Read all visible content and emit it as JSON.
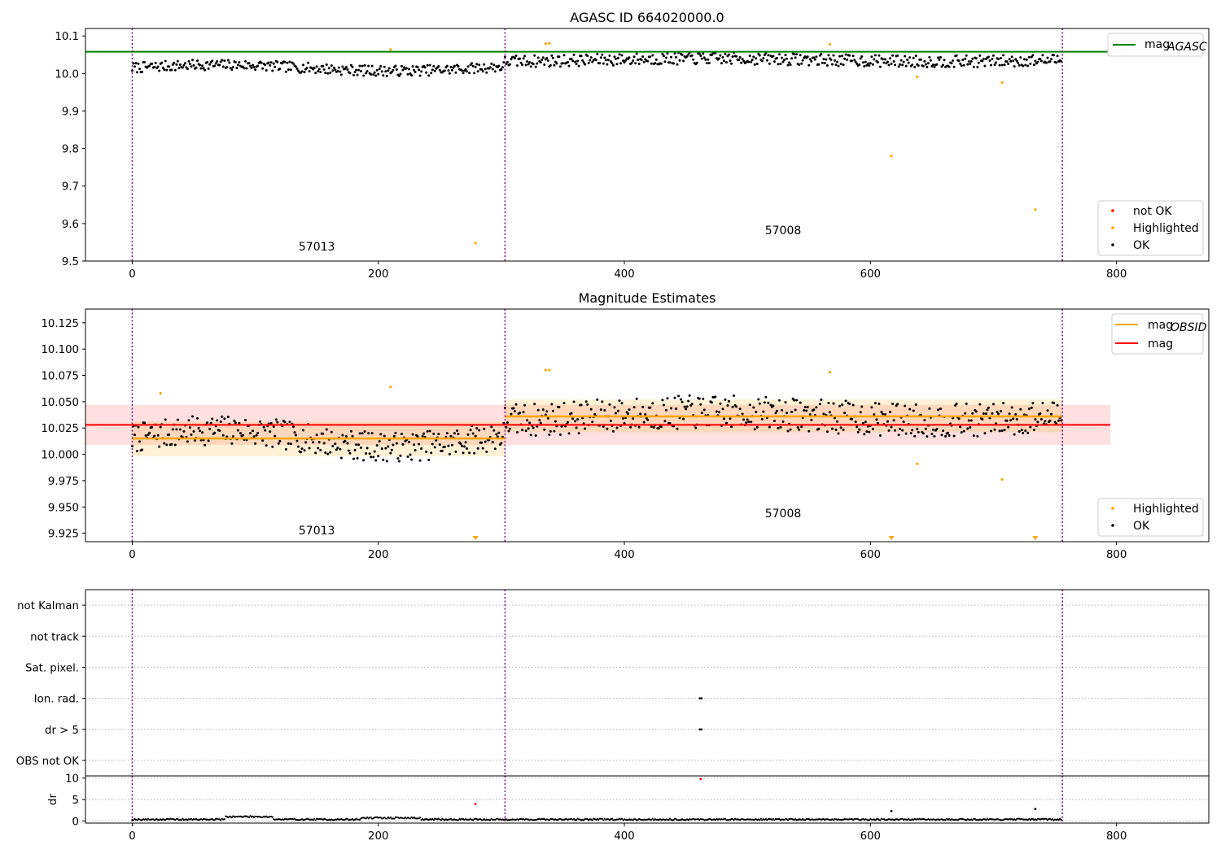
{
  "chart_data": [
    {
      "type": "scatter",
      "id": "agasc_panel",
      "title": "AGASC ID 664020000.0",
      "xlim": [
        -38,
        875
      ],
      "ylim": [
        9.5,
        10.12
      ],
      "xticks": [
        0,
        200,
        400,
        600,
        800
      ],
      "xtick_labels": [
        "0",
        "200",
        "400",
        "600",
        "800"
      ],
      "yticks": [
        9.5,
        9.6,
        9.7,
        9.8,
        9.9,
        10.0,
        10.1
      ],
      "ytick_labels": [
        "9.5",
        "9.6",
        "9.7",
        "9.8",
        "9.9",
        "10.0",
        "10.1"
      ],
      "vlines": [
        0,
        303,
        756
      ],
      "hline": {
        "y": 10.058,
        "x0": -38,
        "x1": 795,
        "color": "#008000"
      },
      "segments": [
        {
          "x0": 0,
          "x1": 303,
          "mean": 10.015,
          "amp": 0.014
        },
        {
          "x0": 303,
          "x1": 756,
          "mean": 10.036,
          "amp": 0.016
        }
      ],
      "highlighted": [
        {
          "x": 210,
          "y": 10.064
        },
        {
          "x": 279,
          "y": 9.548
        },
        {
          "x": 336,
          "y": 10.08
        },
        {
          "x": 339,
          "y": 10.08
        },
        {
          "x": 567,
          "y": 10.078
        },
        {
          "x": 617,
          "y": 9.78
        },
        {
          "x": 638,
          "y": 9.991
        },
        {
          "x": 707,
          "y": 9.976
        },
        {
          "x": 734,
          "y": 9.637
        }
      ],
      "annotations": [
        {
          "text": "57013",
          "x": 150,
          "y": 9.528
        },
        {
          "text": "57008",
          "x": 529,
          "y": 9.572
        }
      ],
      "legend_top": [
        {
          "label": "mag",
          "sub": "AGASC",
          "color": "#008000"
        }
      ],
      "legend_bottom": [
        {
          "label": "not OK",
          "color": "#ff0000"
        },
        {
          "label": "Highlighted",
          "color": "#ffa500"
        },
        {
          "label": "OK",
          "color": "#000000"
        }
      ],
      "colors": {
        "ok": "#000000",
        "highlighted": "#ffa500",
        "not_ok": "#ff0000",
        "vline": "#800080"
      }
    },
    {
      "type": "scatter",
      "id": "mag_estimates_panel",
      "title": "Magnitude Estimates",
      "xlim": [
        -38,
        875
      ],
      "ylim": [
        9.917,
        10.138
      ],
      "xticks": [
        0,
        200,
        400,
        600,
        800
      ],
      "xtick_labels": [
        "0",
        "200",
        "400",
        "600",
        "800"
      ],
      "yticks": [
        9.925,
        9.95,
        9.975,
        10.0,
        10.025,
        10.05,
        10.075,
        10.1,
        10.125
      ],
      "ytick_labels": [
        "9.925",
        "9.950",
        "9.975",
        "10.000",
        "10.025",
        "10.050",
        "10.075",
        "10.100",
        "10.125"
      ],
      "vlines": [
        0,
        303,
        756
      ],
      "mag_line": {
        "y": 10.028,
        "band": [
          10.009,
          10.047
        ],
        "x0": -38,
        "x1": 795,
        "color": "#ff0000"
      },
      "obsid_segments": [
        {
          "x0": 0,
          "x1": 303,
          "y": 10.015,
          "band": [
            9.998,
            10.031
          ]
        },
        {
          "x0": 303,
          "x1": 756,
          "y": 10.036,
          "band": [
            10.021,
            10.052
          ]
        }
      ],
      "highlighted": [
        {
          "x": 23,
          "y": 10.058
        },
        {
          "x": 210,
          "y": 10.064
        },
        {
          "x": 336,
          "y": 10.08
        },
        {
          "x": 339,
          "y": 10.08
        },
        {
          "x": 567,
          "y": 10.078
        },
        {
          "x": 638,
          "y": 9.991
        },
        {
          "x": 707,
          "y": 9.976
        }
      ],
      "offscale_markers": [
        279,
        617,
        734
      ],
      "annotations": [
        {
          "text": "57013",
          "x": 150,
          "y": 9.924
        },
        {
          "text": "57008",
          "x": 529,
          "y": 9.94
        }
      ],
      "legend_top": [
        {
          "label": "mag",
          "sub": "OBSID",
          "color": "#ffa500"
        },
        {
          "label": "mag",
          "sub": "",
          "color": "#ff0000"
        }
      ],
      "legend_bottom": [
        {
          "label": "Highlighted",
          "color": "#ffa500"
        },
        {
          "label": "OK",
          "color": "#000000"
        }
      ]
    },
    {
      "type": "scatter",
      "id": "flags_panel",
      "xlim": [
        -38,
        875
      ],
      "ylim": [
        -0.5,
        5.5
      ],
      "category_labels": [
        "OBS not OK",
        "dr > 5",
        "Ion. rad.",
        "Sat. pixel.",
        "not track",
        "not Kalman"
      ],
      "vlines": [
        0,
        303,
        756
      ],
      "flag_points": [
        {
          "category": "dr > 5",
          "x": 462
        },
        {
          "category": "Ion. rad.",
          "x": 462
        }
      ]
    },
    {
      "type": "scatter",
      "id": "dr_panel",
      "ylabel": "dr",
      "xlim": [
        -38,
        875
      ],
      "ylim": [
        -0.5,
        10.5
      ],
      "xticks": [
        0,
        200,
        400,
        600,
        800
      ],
      "xtick_labels": [
        "0",
        "200",
        "400",
        "600",
        "800"
      ],
      "yticks": [
        0,
        5,
        10
      ],
      "ytick_labels": [
        "0",
        "5",
        "10"
      ],
      "vlines": [
        0,
        303,
        756
      ],
      "dr_outliers": [
        {
          "x": 279,
          "y": 4.0,
          "color": "#ff0000"
        },
        {
          "x": 462,
          "y": 9.8,
          "color": "#ff0000"
        },
        {
          "x": 617,
          "y": 2.3,
          "color": "#000000"
        },
        {
          "x": 734,
          "y": 2.8,
          "color": "#000000"
        }
      ]
    }
  ]
}
